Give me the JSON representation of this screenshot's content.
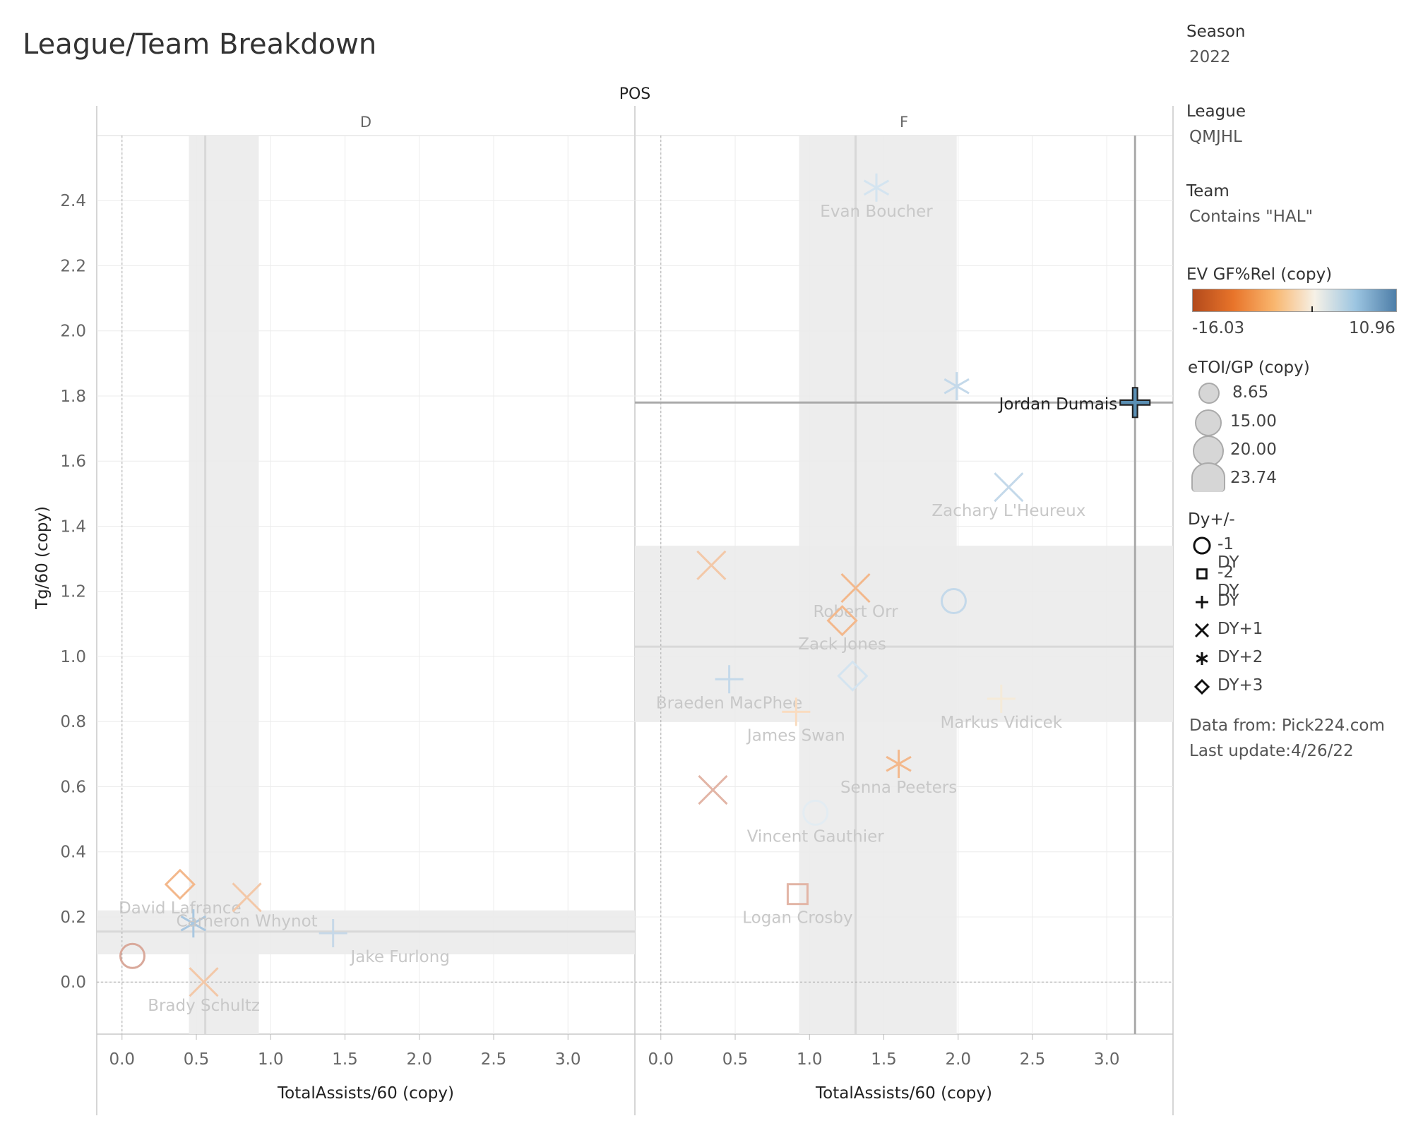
{
  "title": "League/Team Breakdown",
  "filters": [
    {
      "label": "Season",
      "value": "2022"
    },
    {
      "label": "League",
      "value": "QMJHL"
    },
    {
      "label": "Team",
      "value": "Contains \"HAL\""
    }
  ],
  "color_legend": {
    "title": "EV GF%Rel (copy)",
    "min": "-16.03",
    "max": "10.96",
    "colors": [
      "#b34a1c",
      "#e8742a",
      "#f9b66e",
      "#f6f1e7",
      "#9cc5e1",
      "#4e7ea8"
    ]
  },
  "size_legend": {
    "title": "eTOI/GP (copy)",
    "items": [
      "8.65",
      "15.00",
      "20.00",
      "23.74"
    ]
  },
  "shape_legend": {
    "title": "Dy+/-",
    "items": [
      {
        "shape": "circle",
        "label": "-1 DY"
      },
      {
        "shape": "square",
        "label": "-2 DY"
      },
      {
        "shape": "plus",
        "label": "DY"
      },
      {
        "shape": "x",
        "label": "DY+1"
      },
      {
        "shape": "asterisk",
        "label": "DY+2"
      },
      {
        "shape": "diamond",
        "label": "DY+3"
      }
    ]
  },
  "footer": [
    "Data from: Pick224.com",
    "Last update:4/26/22"
  ],
  "chart_data": {
    "type": "scatter",
    "column_header": "POS",
    "xlabel": "TotalAssists/60 (copy)",
    "ylabel": "Tg/60 (copy)",
    "xlim": [
      -0.17,
      3.45
    ],
    "ylim": [
      -0.16,
      2.6
    ],
    "xticks": [
      "0.0",
      "0.5",
      "1.0",
      "1.5",
      "2.0",
      "2.5",
      "3.0"
    ],
    "yticks": [
      "0.0",
      "0.2",
      "0.4",
      "0.6",
      "0.8",
      "1.0",
      "1.2",
      "1.4",
      "1.6",
      "1.8",
      "2.0",
      "2.2",
      "2.4"
    ],
    "highlight": "Jordan Dumais",
    "panels": [
      {
        "name": "D",
        "x_band": [
          0.45,
          0.92
        ],
        "x_ref": 0.56,
        "y_band": [
          0.085,
          0.22
        ],
        "y_ref": 0.155,
        "points": [
          {
            "x": 0.07,
            "y": 0.08,
            "shape": "circle",
            "color": "#d9a99b",
            "label": ""
          },
          {
            "x": 0.39,
            "y": 0.3,
            "shape": "diamond",
            "color": "#f3b88c",
            "label": "David Lafrance"
          },
          {
            "x": 0.48,
            "y": 0.18,
            "shape": "asterisk",
            "color": "#a9c7e0",
            "label": ""
          },
          {
            "x": 0.84,
            "y": 0.26,
            "shape": "x",
            "color": "#f3c8a8",
            "label": "Cameron Whynot"
          },
          {
            "x": 0.55,
            "y": 0.0,
            "shape": "x",
            "color": "#f3c8a8",
            "label": "Brady Schultz"
          },
          {
            "x": 1.42,
            "y": 0.15,
            "shape": "plus",
            "color": "#c6d8e8",
            "label": "Jake Furlong"
          }
        ]
      },
      {
        "name": "F",
        "x_band": [
          0.93,
          1.99
        ],
        "x_ref": 1.31,
        "y_band": [
          0.8,
          1.34
        ],
        "y_ref": 1.03,
        "points": [
          {
            "x": 1.45,
            "y": 2.44,
            "shape": "asterisk",
            "color": "#d4e4f0",
            "label": "Evan Boucher"
          },
          {
            "x": 1.99,
            "y": 1.83,
            "shape": "asterisk",
            "color": "#c4d9ea",
            "label": ""
          },
          {
            "x": 3.19,
            "y": 1.78,
            "shape": "plus",
            "color": "#5a8fb4",
            "label": "Jordan Dumais"
          },
          {
            "x": 2.34,
            "y": 1.52,
            "shape": "x",
            "color": "#c4d9ea",
            "label": "Zachary L'Heureux"
          },
          {
            "x": 0.34,
            "y": 1.28,
            "shape": "x",
            "color": "#f3c8a8",
            "label": ""
          },
          {
            "x": 1.31,
            "y": 1.21,
            "shape": "x",
            "color": "#f3b88c",
            "label": "Robert Orr"
          },
          {
            "x": 1.97,
            "y": 1.17,
            "shape": "circle",
            "color": "#c4d9ea",
            "label": ""
          },
          {
            "x": 1.22,
            "y": 1.11,
            "shape": "diamond",
            "color": "#f3b88c",
            "label": "Zack Jones"
          },
          {
            "x": 0.46,
            "y": 0.93,
            "shape": "plus",
            "color": "#c4d9ea",
            "label": "Braeden MacPhee"
          },
          {
            "x": 1.29,
            "y": 0.94,
            "shape": "diamond",
            "color": "#d4e4f0",
            "label": ""
          },
          {
            "x": 0.91,
            "y": 0.83,
            "shape": "plus",
            "color": "#f9dcc0",
            "label": "James Swan"
          },
          {
            "x": 2.29,
            "y": 0.87,
            "shape": "plus",
            "color": "#f5ead8",
            "label": "Markus Vidicek"
          },
          {
            "x": 1.6,
            "y": 0.67,
            "shape": "asterisk",
            "color": "#f3b88c",
            "label": "Senna Peeters"
          },
          {
            "x": 0.35,
            "y": 0.59,
            "shape": "x",
            "color": "#e2b5a6",
            "label": ""
          },
          {
            "x": 1.04,
            "y": 0.52,
            "shape": "circle",
            "color": "#e3ecf2",
            "label": "Vincent Gauthier"
          },
          {
            "x": 0.92,
            "y": 0.27,
            "shape": "square",
            "color": "#e2b5a6",
            "label": "Logan Crosby"
          }
        ]
      }
    ]
  }
}
